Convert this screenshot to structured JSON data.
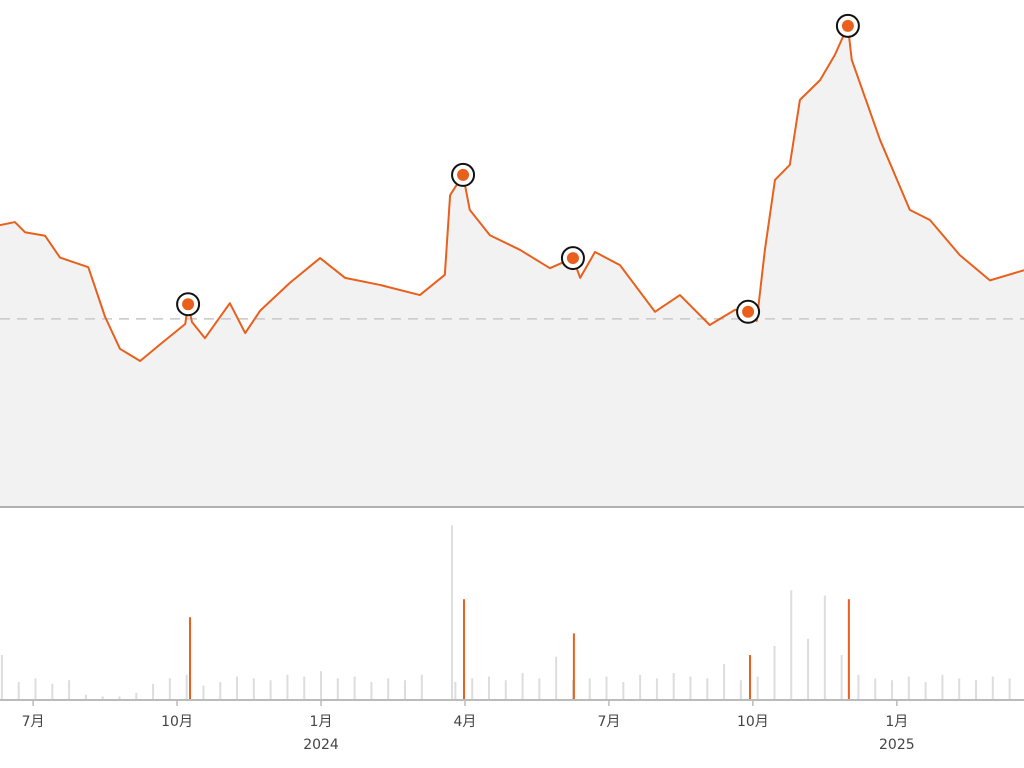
{
  "chart_data": [
    {
      "type": "area",
      "color": "#e8601c",
      "fill": "#f2f2f2",
      "xlim": [
        -0.69,
        20.65
      ],
      "ylim": [
        0,
        100
      ],
      "reference_line": 37.1,
      "x": [
        -0.69,
        -0.38,
        -0.17,
        0.25,
        0.56,
        1.15,
        1.5,
        1.81,
        2.23,
        2.65,
        3.17,
        3.23,
        3.31,
        3.58,
        4.1,
        4.42,
        4.73,
        5.35,
        5.98,
        6.5,
        7.23,
        8.06,
        8.58,
        8.69,
        8.96,
        9.1,
        9.52,
        10.15,
        10.77,
        11.25,
        11.4,
        11.71,
        12.23,
        12.96,
        13.48,
        14.1,
        14.63,
        14.9,
        15.08,
        15.25,
        15.46,
        15.77,
        15.98,
        16.4,
        16.71,
        16.98,
        17.06,
        17.65,
        18.27,
        18.69,
        19.31,
        19.94,
        20.65
      ],
      "values": [
        55.6,
        56.2,
        54.2,
        53.5,
        49.2,
        47.3,
        37.5,
        31.2,
        28.8,
        32.1,
        36.1,
        40.0,
        36.5,
        33.3,
        40.2,
        34.3,
        38.7,
        44.2,
        49.1,
        45.2,
        43.8,
        41.8,
        45.8,
        61.5,
        65.5,
        58.6,
        53.6,
        50.7,
        47.1,
        49.1,
        45.2,
        50.3,
        47.7,
        38.5,
        41.8,
        35.9,
        38.9,
        38.5,
        36.7,
        50.7,
        64.5,
        67.5,
        80.3,
        84.2,
        89.2,
        94.9,
        88.2,
        72.4,
        58.6,
        56.6,
        49.7,
        44.7,
        46.7
      ],
      "highlight_indices": [
        11,
        24,
        29,
        37,
        45
      ]
    },
    {
      "type": "bar",
      "xlim": [
        -0.69,
        20.65
      ],
      "ylim": [
        0,
        100
      ],
      "xticks": [
        {
          "value": 0,
          "label": "7月"
        },
        {
          "value": 3,
          "label": "10月"
        },
        {
          "value": 6,
          "label": "1月"
        },
        {
          "value": 9,
          "label": "4月"
        },
        {
          "value": 12,
          "label": "7月"
        },
        {
          "value": 15,
          "label": "10月"
        },
        {
          "value": 18,
          "label": "1月"
        }
      ],
      "year_ticks": [
        {
          "value": 6,
          "label": "2024"
        },
        {
          "value": 18,
          "label": "2025"
        }
      ],
      "series": [
        {
          "color": "#dddddd",
          "x": [
            -0.65,
            -0.3,
            0.05,
            0.4,
            0.75,
            1.1,
            1.45,
            1.8,
            2.15,
            2.5,
            2.85,
            3.2,
            3.55,
            3.9,
            4.25,
            4.6,
            4.95,
            5.3,
            5.65,
            6.0,
            6.35,
            6.7,
            7.05,
            7.4,
            7.75,
            8.1,
            8.73,
            8.8,
            9.15,
            9.5,
            9.85,
            10.2,
            10.55,
            10.9,
            11.25,
            11.6,
            11.95,
            12.3,
            12.65,
            13.0,
            13.35,
            13.7,
            14.05,
            14.4,
            14.75,
            15.1,
            15.45,
            15.8,
            16.15,
            16.5,
            16.85,
            17.2,
            17.55,
            17.9,
            18.25,
            18.6,
            18.95,
            19.3,
            19.65,
            20.0,
            20.35
          ],
          "values": [
            25,
            10,
            12,
            9,
            11,
            3,
            2,
            2,
            4,
            9,
            12,
            14,
            8,
            10,
            13,
            12,
            11,
            14,
            13,
            16,
            12,
            13,
            10,
            12,
            11,
            14,
            97,
            10,
            12,
            13,
            11,
            15,
            12,
            24,
            11,
            12,
            13,
            10,
            14,
            12,
            15,
            13,
            12,
            20,
            11,
            13,
            30,
            61,
            34,
            58,
            25,
            14,
            12,
            11,
            13,
            10,
            14,
            12,
            11,
            13,
            12
          ]
        },
        {
          "color": "#e8601c",
          "x": [
            3.27,
            8.98,
            11.27,
            14.94,
            17.0
          ],
          "values": [
            46,
            56,
            37,
            25,
            56
          ]
        }
      ]
    }
  ]
}
